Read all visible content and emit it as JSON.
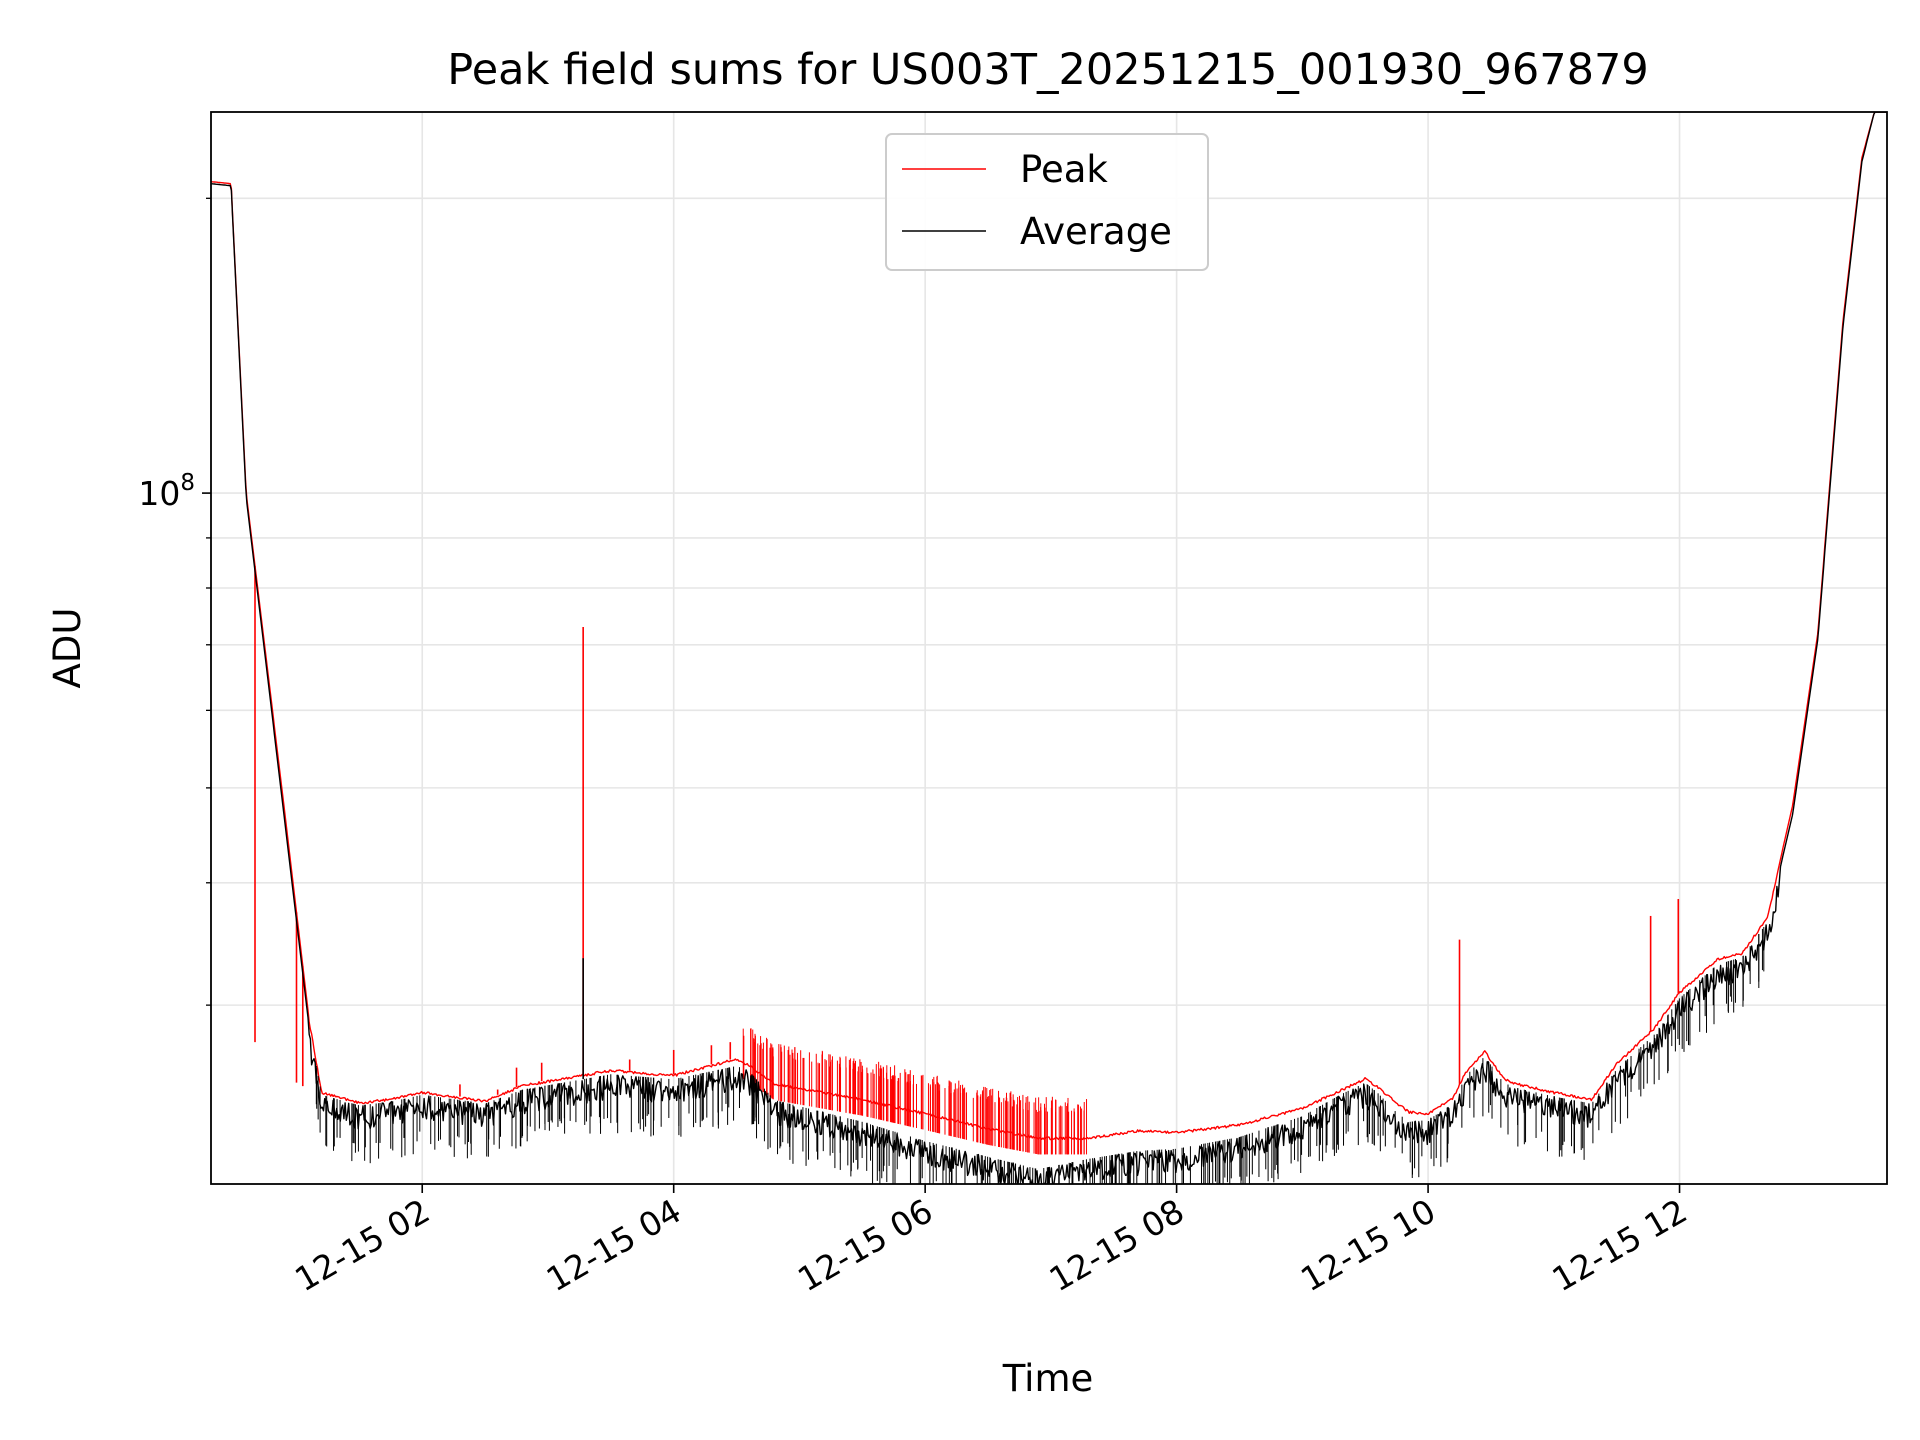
{
  "chart_data": {
    "type": "line",
    "title": "Peak field sums for US003T_20251215_001930_967879",
    "xlabel": "Time",
    "ylabel": "ADU",
    "yscale": "log",
    "grid": true,
    "grid_color": "#e6e6e6",
    "legend_position": "upper center",
    "x_unit": "hours since 2025-12-15 00:00",
    "xlim": [
      0.32,
      13.65
    ],
    "ylim": [
      19700000,
      245000000
    ],
    "xticks": [
      {
        "value": 2,
        "label": "12-15 02"
      },
      {
        "value": 4,
        "label": "12-15 04"
      },
      {
        "value": 6,
        "label": "12-15 06"
      },
      {
        "value": 8,
        "label": "12-15 08"
      },
      {
        "value": 10,
        "label": "12-15 10"
      },
      {
        "value": 12,
        "label": "12-15 12"
      }
    ],
    "yticks_major": [
      {
        "value": 100000000,
        "base": "10",
        "exponent": "8"
      }
    ],
    "yticks_minor": [
      30000000,
      40000000,
      50000000,
      60000000,
      70000000,
      80000000,
      90000000,
      200000000
    ],
    "series": [
      {
        "name": "Peak",
        "color": "#ff0000",
        "x": [
          0.32,
          0.48,
          0.6,
          0.9,
          1.1,
          1.2,
          1.5,
          1.75,
          2.0,
          2.5,
          2.8,
          3.2,
          3.5,
          4.0,
          4.5,
          4.6,
          4.8,
          5.5,
          6.0,
          6.5,
          6.9,
          7.3,
          7.7,
          8.0,
          8.5,
          9.0,
          9.3,
          9.5,
          9.6,
          9.75,
          9.85,
          10.0,
          10.2,
          10.3,
          10.45,
          10.6,
          10.7,
          11.0,
          11.3,
          11.5,
          11.8,
          12.0,
          12.3,
          12.5,
          12.7,
          12.9,
          13.1,
          13.3,
          13.45,
          13.55,
          13.65
        ],
        "y": [
          208000000,
          207000000,
          100000000,
          48000000,
          29000000,
          24500000,
          23900000,
          24100000,
          24500000,
          24000000,
          24900000,
          25400000,
          25800000,
          25500000,
          26500000,
          26100000,
          25000000,
          24100000,
          23300000,
          22500000,
          22000000,
          22000000,
          22400000,
          22300000,
          22700000,
          23600000,
          24600000,
          25300000,
          24800000,
          23900000,
          23400000,
          23300000,
          24200000,
          25700000,
          27000000,
          25300000,
          25000000,
          24500000,
          24100000,
          26200000,
          28500000,
          31000000,
          33500000,
          34000000,
          37000000,
          48000000,
          72000000,
          150000000,
          220000000,
          245000000,
          245000000
        ],
        "spikes": [
          {
            "x": 0.67,
            "y": 27500000
          },
          {
            "x": 1.0,
            "y": 25000000
          },
          {
            "x": 1.05,
            "y": 24800000
          },
          {
            "x": 2.3,
            "y": 24900000
          },
          {
            "x": 2.6,
            "y": 24600000
          },
          {
            "x": 2.75,
            "y": 25900000
          },
          {
            "x": 2.95,
            "y": 26200000
          },
          {
            "x": 3.28,
            "y": 73000000
          },
          {
            "x": 3.65,
            "y": 26400000
          },
          {
            "x": 4.0,
            "y": 27000000
          },
          {
            "x": 4.3,
            "y": 27300000
          },
          {
            "x": 4.45,
            "y": 27500000
          },
          {
            "x": 10.25,
            "y": 35000000
          },
          {
            "x": 11.77,
            "y": 37000000
          },
          {
            "x": 11.99,
            "y": 38500000
          }
        ]
      },
      {
        "name": "Average",
        "color": "#000000",
        "x": [
          0.32,
          0.48,
          0.6,
          0.9,
          1.1,
          1.2,
          1.5,
          1.75,
          2.0,
          2.5,
          2.8,
          3.2,
          3.5,
          4.0,
          4.5,
          4.6,
          4.8,
          5.5,
          6.0,
          6.5,
          6.9,
          7.3,
          7.7,
          8.0,
          8.5,
          9.0,
          9.3,
          9.5,
          9.6,
          9.75,
          9.85,
          10.0,
          10.2,
          10.3,
          10.45,
          10.6,
          10.7,
          11.0,
          11.3,
          11.5,
          11.8,
          12.0,
          12.3,
          12.5,
          12.7,
          12.9,
          13.1,
          13.3,
          13.45,
          13.55,
          13.65
        ],
        "y": [
          207000000,
          206000000,
          99000000,
          47000000,
          28500000,
          24300000,
          23700000,
          23900000,
          24300000,
          23800000,
          24600000,
          25100000,
          25500000,
          25200000,
          26000000,
          25700000,
          24000000,
          22800000,
          21800000,
          21000000,
          20400000,
          20900000,
          21300000,
          21400000,
          22000000,
          23100000,
          24300000,
          25000000,
          24400000,
          23300000,
          22800000,
          22900000,
          23800000,
          25400000,
          26600000,
          25000000,
          24700000,
          24200000,
          23800000,
          25800000,
          28000000,
          30500000,
          33000000,
          33600000,
          36500000,
          47000000,
          71000000,
          148000000,
          218000000,
          245000000,
          245000000
        ],
        "spikes": [
          {
            "x": 3.28,
            "y": 33500000
          }
        ]
      }
    ]
  }
}
